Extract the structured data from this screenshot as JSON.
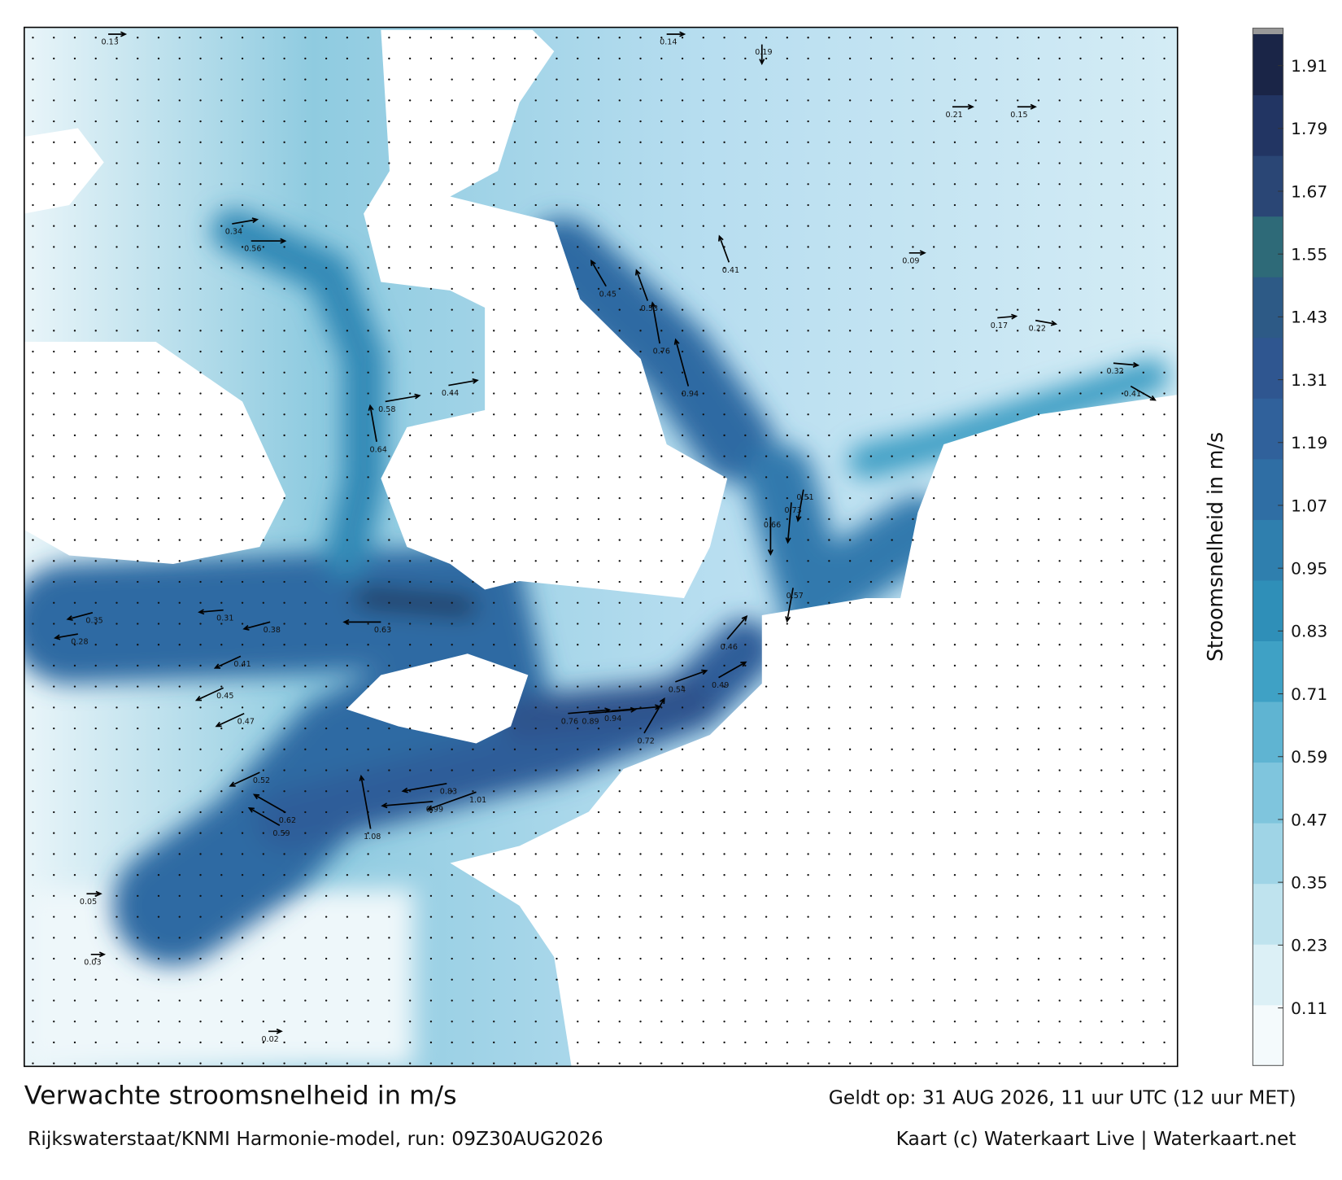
{
  "title": "Verwachte stroomsnelheid in m/s",
  "subtitle": "Rijkswaterstaat/KNMI Harmonie-model, run: 09Z30AUG2026",
  "valid_time": "Geldt op: 31 AUG 2026, 11 uur UTC (12 uur MET)",
  "credit": "Kaart (c) Waterkaart Live | Waterkaart.net",
  "colorbar": {
    "label": "Stroomsnelheid in m/s",
    "clim": [
      0,
      1.97
    ],
    "ticks": [
      0.11,
      0.23,
      0.35,
      0.47,
      0.59,
      0.71,
      0.83,
      0.95,
      1.07,
      1.19,
      1.31,
      1.43,
      1.55,
      1.67,
      1.79,
      1.91
    ],
    "colors": [
      "#f4fafc",
      "#dcf0f6",
      "#bfe3ee",
      "#9fd4e6",
      "#7fc5dd",
      "#5fb4d2",
      "#3fa1c5",
      "#2f8fb8",
      "#2f7fae",
      "#2f6ea4",
      "#30619b",
      "#2f5690",
      "#2d5a86",
      "#2e6a78",
      "#2a4675",
      "#223563",
      "#1a2547"
    ]
  },
  "speeds": [
    0.34,
    0.56,
    0.76,
    0.94,
    0.83,
    1.01,
    1.08,
    0.99,
    0.94,
    0.89,
    0.76,
    0.72,
    0.62,
    0.59,
    0.52,
    0.47,
    0.45,
    0.41,
    0.38,
    0.35,
    0.31,
    0.63,
    0.64,
    0.58,
    0.44,
    0.41,
    0.45,
    0.53,
    0.57,
    0.51,
    0.73,
    0.66,
    0.49,
    0.54,
    0.46,
    0.28,
    0.22,
    0.32,
    0.41,
    0.17,
    0.15,
    0.21,
    0.19,
    0.14,
    0.13,
    0.05,
    0.03,
    0.02,
    0.09
  ]
}
